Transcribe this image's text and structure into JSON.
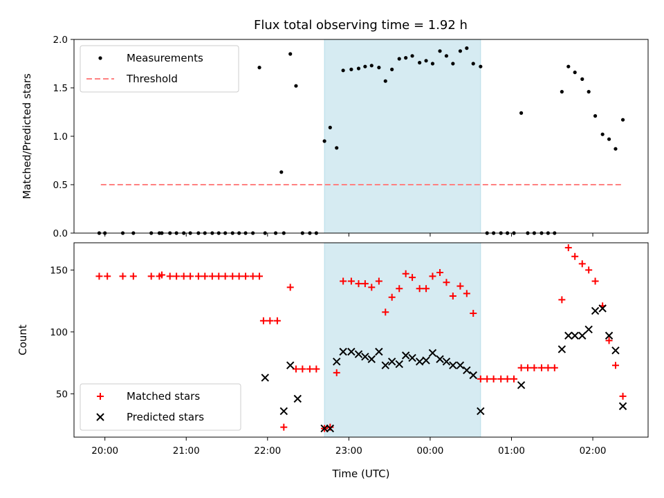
{
  "chart_data": [
    {
      "type": "scatter",
      "title": "Flux total observing time = 1.92 h",
      "ylabel": "Matched/Predicted stars",
      "xlabel": "",
      "ylim": [
        0,
        2.0
      ],
      "yticks": [
        0.0,
        0.5,
        1.0,
        1.5,
        2.0
      ],
      "ytick_labels": [
        "0.0",
        "0.5",
        "1.0",
        "1.5",
        "2.0"
      ],
      "legend_position": "top-left",
      "highlight_span_hours": [
        22.7,
        24.62
      ],
      "series": [
        {
          "name": "Measurements",
          "marker": "dot",
          "color": "#000000",
          "x": [
            19.93,
            20.0,
            20.22,
            20.35,
            20.57,
            20.67,
            20.7,
            20.8,
            20.88,
            20.97,
            21.05,
            21.15,
            21.23,
            21.32,
            21.4,
            21.48,
            21.57,
            21.65,
            21.73,
            21.82,
            21.9,
            21.97,
            22.1,
            22.17,
            22.2,
            22.28,
            22.35,
            22.43,
            22.52,
            22.6,
            22.7,
            22.77,
            22.85,
            22.93,
            23.03,
            23.12,
            23.2,
            23.28,
            23.37,
            23.45,
            23.53,
            23.62,
            23.7,
            23.78,
            23.87,
            23.95,
            24.03,
            24.12,
            24.2,
            24.28,
            24.37,
            24.45,
            24.53,
            24.62,
            24.7,
            24.78,
            24.87,
            24.95,
            25.03,
            25.12,
            25.2,
            25.28,
            25.37,
            25.45,
            25.53,
            25.62,
            25.7,
            25.78,
            25.87,
            25.95,
            26.03,
            26.12,
            26.2,
            26.28,
            26.37
          ],
          "y": [
            0,
            0,
            0,
            0,
            0,
            0,
            0,
            0,
            0,
            0,
            0,
            0,
            0,
            0,
            0,
            0,
            0,
            0,
            0,
            0,
            1.71,
            0,
            0,
            0.63,
            0,
            1.85,
            1.52,
            0,
            0,
            0,
            0.95,
            1.09,
            0.88,
            1.68,
            1.69,
            1.7,
            1.72,
            1.73,
            1.71,
            1.57,
            1.69,
            1.8,
            1.81,
            1.83,
            1.76,
            1.78,
            1.75,
            1.88,
            1.83,
            1.75,
            1.88,
            1.91,
            1.75,
            1.72,
            0,
            0,
            0,
            0,
            0,
            1.24,
            0,
            0,
            0,
            0,
            0,
            1.46,
            1.72,
            1.66,
            1.59,
            1.46,
            1.21,
            1.02,
            0.97,
            0.87,
            1.17
          ]
        },
        {
          "name": "Threshold",
          "style": "dashed",
          "color": "#ff8080",
          "x": [
            19.95,
            26.35
          ],
          "y": [
            0.5,
            0.5
          ]
        }
      ]
    },
    {
      "type": "scatter",
      "title": "",
      "xlabel": "Time (UTC)",
      "ylabel": "Count",
      "ylim": [
        15,
        172
      ],
      "yticks": [
        50,
        100,
        150
      ],
      "ytick_labels": [
        "50",
        "100",
        "150"
      ],
      "xticks": [
        20,
        21,
        22,
        23,
        24,
        25,
        26
      ],
      "xtick_labels": [
        "20:00",
        "21:00",
        "22:00",
        "23:00",
        "00:00",
        "01:00",
        "02:00"
      ],
      "xlim": [
        19.62,
        26.68
      ],
      "legend_position": "bottom-left",
      "highlight_span_hours": [
        22.7,
        24.62
      ],
      "series": [
        {
          "name": "Matched stars",
          "marker": "plus",
          "color": "#ff0000",
          "x": [
            19.93,
            20.03,
            20.22,
            20.35,
            20.57,
            20.67,
            20.7,
            20.8,
            20.88,
            20.97,
            21.05,
            21.15,
            21.23,
            21.32,
            21.4,
            21.48,
            21.57,
            21.65,
            21.73,
            21.82,
            21.9,
            21.95,
            22.03,
            22.12,
            22.2,
            22.28,
            22.35,
            22.43,
            22.52,
            22.6,
            22.7,
            22.77,
            22.85,
            22.93,
            23.03,
            23.12,
            23.2,
            23.28,
            23.37,
            23.45,
            23.53,
            23.62,
            23.7,
            23.78,
            23.87,
            23.95,
            24.03,
            24.12,
            24.2,
            24.28,
            24.37,
            24.45,
            24.53,
            24.62,
            24.7,
            24.78,
            24.87,
            24.95,
            25.03,
            25.12,
            25.2,
            25.28,
            25.37,
            25.45,
            25.53,
            25.62,
            25.7,
            25.78,
            25.87,
            25.95,
            26.03,
            26.12,
            26.2,
            26.28,
            26.37
          ],
          "y": [
            145,
            145,
            145,
            145,
            145,
            145,
            146,
            145,
            145,
            145,
            145,
            145,
            145,
            145,
            145,
            145,
            145,
            145,
            145,
            145,
            145,
            109,
            109,
            109,
            23,
            136,
            70,
            70,
            70,
            70,
            22,
            23,
            67,
            141,
            141,
            139,
            139,
            136,
            141,
            116,
            128,
            135,
            147,
            144,
            135,
            135,
            145,
            148,
            140,
            129,
            137,
            131,
            115,
            62,
            62,
            62,
            62,
            62,
            62,
            71,
            71,
            71,
            71,
            71,
            71,
            126,
            168,
            161,
            155,
            150,
            141,
            121,
            93,
            73,
            48
          ]
        },
        {
          "name": "Predicted stars",
          "marker": "x",
          "color": "#000000",
          "x": [
            21.97,
            22.2,
            22.28,
            22.37,
            22.7,
            22.77,
            22.85,
            22.93,
            23.03,
            23.12,
            23.2,
            23.28,
            23.37,
            23.45,
            23.53,
            23.62,
            23.7,
            23.78,
            23.87,
            23.95,
            24.03,
            24.12,
            24.2,
            24.28,
            24.37,
            24.45,
            24.53,
            24.62,
            25.12,
            25.62,
            25.7,
            25.78,
            25.87,
            25.95,
            26.03,
            26.12,
            26.2,
            26.28,
            26.37
          ],
          "y": [
            63,
            36,
            73,
            46,
            22,
            22,
            76,
            84,
            84,
            82,
            80,
            78,
            84,
            73,
            76,
            74,
            81,
            79,
            76,
            77,
            83,
            78,
            76,
            73,
            73,
            69,
            65,
            36,
            57,
            86,
            97,
            97,
            97,
            102,
            117,
            119,
            97,
            85,
            40
          ]
        }
      ]
    }
  ]
}
